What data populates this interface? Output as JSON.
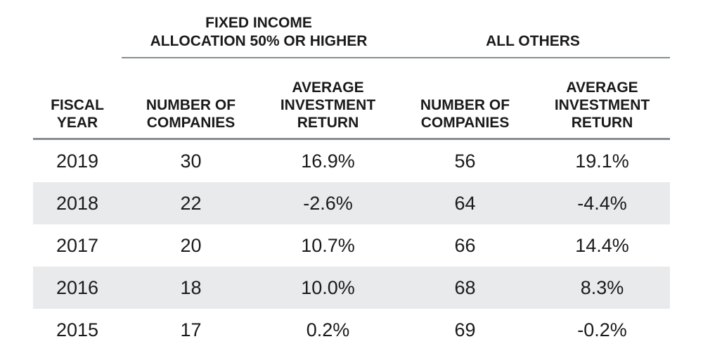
{
  "table": {
    "group_headers": [
      {
        "label": "FIXED INCOME\nALLOCATION 50% OR HIGHER"
      },
      {
        "label": "ALL OTHERS"
      }
    ],
    "column_headers": [
      "FISCAL\nYEAR",
      "NUMBER OF\nCOMPANIES",
      "AVERAGE\nINVESTMENT\nRETURN",
      "NUMBER OF\nCOMPANIES",
      "AVERAGE\nINVESTMENT\nRETURN"
    ],
    "rows": [
      [
        "2019",
        "30",
        "16.9%",
        "56",
        "19.1%"
      ],
      [
        "2018",
        "22",
        "-2.6%",
        "64",
        "-4.4%"
      ],
      [
        "2017",
        "20",
        "10.7%",
        "66",
        "14.4%"
      ],
      [
        "2016",
        "18",
        "10.0%",
        "68",
        "8.3%"
      ],
      [
        "2015",
        "17",
        "0.2%",
        "69",
        "-0.2%"
      ]
    ],
    "colors": {
      "text": "#1a1a1a",
      "rule": "#878e93",
      "row_band": "#e9eaeb",
      "background": "#ffffff"
    }
  },
  "chart_data": {
    "type": "table",
    "row_label": "FISCAL YEAR",
    "column_groups": [
      {
        "label": "FIXED INCOME ALLOCATION 50% OR HIGHER",
        "columns": [
          "NUMBER OF COMPANIES",
          "AVERAGE INVESTMENT RETURN"
        ]
      },
      {
        "label": "ALL OTHERS",
        "columns": [
          "NUMBER OF COMPANIES",
          "AVERAGE INVESTMENT RETURN"
        ]
      }
    ],
    "rows": [
      {
        "fiscal_year": 2019,
        "fixed_income_50_or_higher": {
          "number_of_companies": 30,
          "average_investment_return_pct": 16.9
        },
        "all_others": {
          "number_of_companies": 56,
          "average_investment_return_pct": 19.1
        }
      },
      {
        "fiscal_year": 2018,
        "fixed_income_50_or_higher": {
          "number_of_companies": 22,
          "average_investment_return_pct": -2.6
        },
        "all_others": {
          "number_of_companies": 64,
          "average_investment_return_pct": -4.4
        }
      },
      {
        "fiscal_year": 2017,
        "fixed_income_50_or_higher": {
          "number_of_companies": 20,
          "average_investment_return_pct": 10.7
        },
        "all_others": {
          "number_of_companies": 66,
          "average_investment_return_pct": 14.4
        }
      },
      {
        "fiscal_year": 2016,
        "fixed_income_50_or_higher": {
          "number_of_companies": 18,
          "average_investment_return_pct": 10.0
        },
        "all_others": {
          "number_of_companies": 68,
          "average_investment_return_pct": 8.3
        }
      },
      {
        "fiscal_year": 2015,
        "fixed_income_50_or_higher": {
          "number_of_companies": 17,
          "average_investment_return_pct": 0.2
        },
        "all_others": {
          "number_of_companies": 69,
          "average_investment_return_pct": -0.2
        }
      }
    ]
  }
}
